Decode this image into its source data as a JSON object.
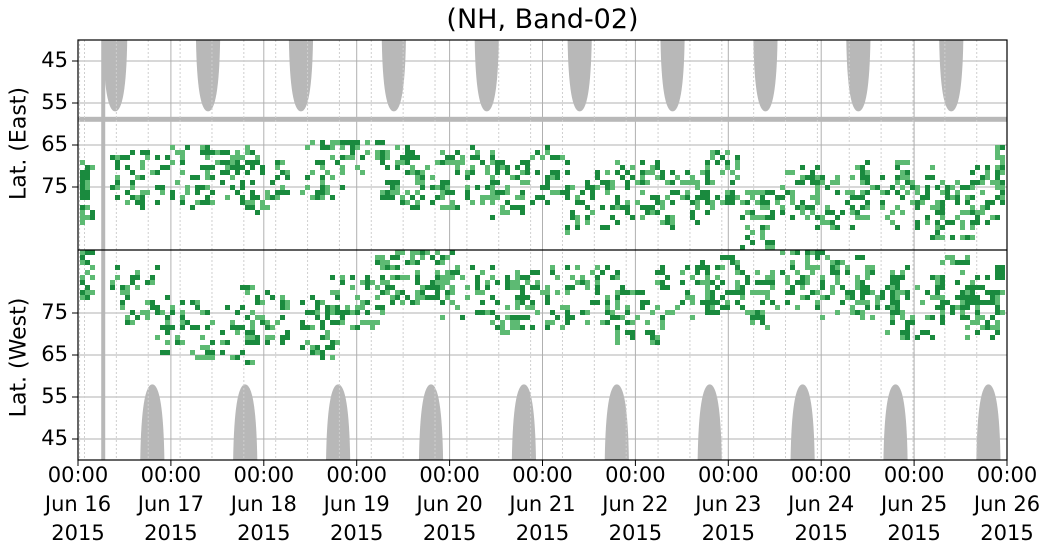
{
  "chart_data": {
    "type": "heatmap",
    "title": "(NH, Band-02)",
    "ylabel_top": "Lat. (East)",
    "ylabel_bottom": "Lat. (West)",
    "y_ticks_top": [
      "45",
      "55",
      "65",
      "75"
    ],
    "y_ticks_bottom": [
      "75",
      "65",
      "55",
      "45"
    ],
    "x_ticks": [
      {
        "time": "00:00",
        "day": "Jun 16",
        "year": "2015"
      },
      {
        "time": "00:00",
        "day": "Jun 17",
        "year": "2015"
      },
      {
        "time": "00:00",
        "day": "Jun 18",
        "year": "2015"
      },
      {
        "time": "00:00",
        "day": "Jun 19",
        "year": "2015"
      },
      {
        "time": "00:00",
        "day": "Jun 20",
        "year": "2015"
      },
      {
        "time": "00:00",
        "day": "Jun 21",
        "year": "2015"
      },
      {
        "time": "00:00",
        "day": "Jun 22",
        "year": "2015"
      },
      {
        "time": "00:00",
        "day": "Jun 23",
        "year": "2015"
      },
      {
        "time": "00:00",
        "day": "Jun 24",
        "year": "2015"
      },
      {
        "time": "00:00",
        "day": "Jun 25",
        "year": "2015"
      },
      {
        "time": "00:00",
        "day": "Jun 26",
        "year": "2015"
      }
    ],
    "x_range": [
      "2015-06-16 00:00",
      "2015-06-26 00:00"
    ],
    "lat_range_each_half": [
      90,
      40
    ],
    "grid": true,
    "colors": {
      "dark_green": "#1a8a3e",
      "light_green": "#5dba73",
      "no_data_gray": "#b8b8b8",
      "grid": "#b0b0b0",
      "center_line": "#000000"
    },
    "data_gaps_gray_east_top": [
      {
        "center_day": 0.4,
        "half_width_day": 0.13
      },
      {
        "center_day": 1.4,
        "half_width_day": 0.13
      },
      {
        "center_day": 2.4,
        "half_width_day": 0.13
      },
      {
        "center_day": 3.4,
        "half_width_day": 0.13
      },
      {
        "center_day": 4.4,
        "half_width_day": 0.13
      },
      {
        "center_day": 5.4,
        "half_width_day": 0.13
      },
      {
        "center_day": 6.4,
        "half_width_day": 0.13
      },
      {
        "center_day": 7.4,
        "half_width_day": 0.13
      },
      {
        "center_day": 8.4,
        "half_width_day": 0.13
      },
      {
        "center_day": 9.4,
        "half_width_day": 0.13
      }
    ],
    "data_gaps_gray_west_bottom": [
      {
        "center_day": 0.8,
        "half_width_day": 0.13
      },
      {
        "center_day": 1.8,
        "half_width_day": 0.13
      },
      {
        "center_day": 2.8,
        "half_width_day": 0.13
      },
      {
        "center_day": 3.8,
        "half_width_day": 0.13
      },
      {
        "center_day": 4.8,
        "half_width_day": 0.13
      },
      {
        "center_day": 5.8,
        "half_width_day": 0.13
      },
      {
        "center_day": 6.8,
        "half_width_day": 0.13
      },
      {
        "center_day": 7.8,
        "half_width_day": 0.13
      },
      {
        "center_day": 8.8,
        "half_width_day": 0.13
      },
      {
        "center_day": 9.8,
        "half_width_day": 0.13
      }
    ],
    "gray_band_east_lat": 59,
    "echo_clusters": [
      {
        "day": 0.05,
        "lat_east": 76,
        "lat_west": 85,
        "spread": 0.08
      },
      {
        "day": 0.6,
        "lat_east": 73,
        "lat_west": 80,
        "spread": 0.25
      },
      {
        "day": 1.1,
        "lat_east": 72,
        "lat_west": 72,
        "spread": 0.3
      },
      {
        "day": 1.6,
        "lat_east": 72,
        "lat_west": 70,
        "spread": 0.25
      },
      {
        "day": 2.0,
        "lat_east": 74,
        "lat_west": 75,
        "spread": 0.25
      },
      {
        "day": 2.6,
        "lat_east": 70,
        "lat_west": 72,
        "spread": 0.2
      },
      {
        "day": 3.0,
        "lat_east": 65,
        "lat_west": 78,
        "spread": 0.3
      },
      {
        "day": 3.4,
        "lat_east": 72,
        "lat_west": 84,
        "spread": 0.2
      },
      {
        "day": 3.8,
        "lat_east": 73,
        "lat_west": 84,
        "spread": 0.2
      },
      {
        "day": 4.2,
        "lat_east": 72,
        "lat_west": 80,
        "spread": 0.3
      },
      {
        "day": 4.6,
        "lat_east": 75,
        "lat_west": 78,
        "spread": 0.2
      },
      {
        "day": 5.0,
        "lat_east": 72,
        "lat_west": 79,
        "spread": 0.3
      },
      {
        "day": 5.5,
        "lat_east": 78,
        "lat_west": 80,
        "spread": 0.3
      },
      {
        "day": 6.0,
        "lat_east": 75,
        "lat_west": 75,
        "spread": 0.25
      },
      {
        "day": 6.5,
        "lat_east": 77,
        "lat_west": 80,
        "spread": 0.3
      },
      {
        "day": 6.9,
        "lat_east": 72,
        "lat_west": 82,
        "spread": 0.2
      },
      {
        "day": 7.3,
        "lat_east": 82,
        "lat_west": 79,
        "spread": 0.2
      },
      {
        "day": 7.8,
        "lat_east": 76,
        "lat_west": 84,
        "spread": 0.25
      },
      {
        "day": 8.2,
        "lat_east": 77,
        "lat_west": 82,
        "spread": 0.3
      },
      {
        "day": 8.6,
        "lat_east": 75,
        "lat_west": 80,
        "spread": 0.3
      },
      {
        "day": 9.0,
        "lat_east": 77,
        "lat_west": 77,
        "spread": 0.3
      },
      {
        "day": 9.4,
        "lat_east": 80,
        "lat_west": 82,
        "spread": 0.25
      },
      {
        "day": 9.7,
        "lat_east": 76,
        "lat_west": 77,
        "spread": 0.2
      },
      {
        "day": 9.95,
        "lat_east": 72,
        "lat_west": 80,
        "spread": 0.1
      }
    ]
  }
}
